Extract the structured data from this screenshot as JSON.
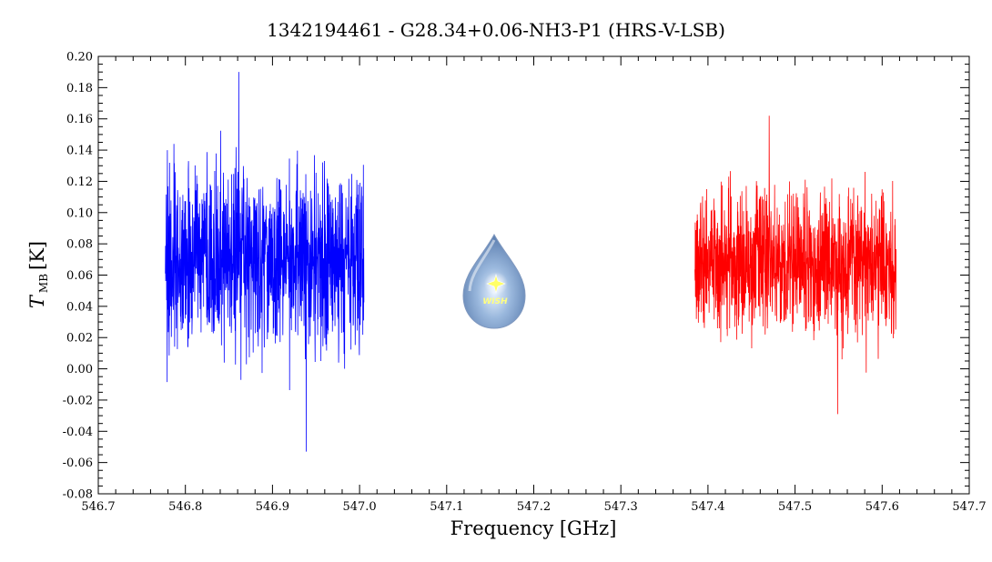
{
  "chart_data": {
    "type": "line",
    "title": "1342194461 - G28.34+0.06-NH3-P1 (HRS-V-LSB)",
    "xlabel": "Frequency [GHz]",
    "ylabel": {
      "symbol": "T",
      "subscript": "MB",
      "unit": "[K]"
    },
    "xlim": [
      546.7,
      547.7
    ],
    "ylim": [
      -0.08,
      0.2
    ],
    "xticks": [
      "546.7",
      "546.8",
      "546.9",
      "547.0",
      "547.1",
      "547.2",
      "547.3",
      "547.4",
      "547.5",
      "547.6",
      "547.7"
    ],
    "yticks": [
      "0.20",
      "0.18",
      "0.16",
      "0.14",
      "0.12",
      "0.10",
      "0.08",
      "0.06",
      "0.04",
      "0.02",
      "0.00",
      "-0.02",
      "-0.04",
      "-0.06",
      "-0.08"
    ],
    "grid": false,
    "legend": "none",
    "logo_text": "WISH",
    "series": [
      {
        "color": "#0000ff",
        "x_range": [
          546.777,
          547.005
        ],
        "mean": 0.07,
        "min": -0.053,
        "max": 0.19,
        "noise_rms": 0.035
      },
      {
        "color": "#ff0000",
        "x_range": [
          547.385,
          547.616
        ],
        "mean": 0.068,
        "min": -0.029,
        "max": 0.162,
        "noise_rms": 0.028
      }
    ]
  }
}
